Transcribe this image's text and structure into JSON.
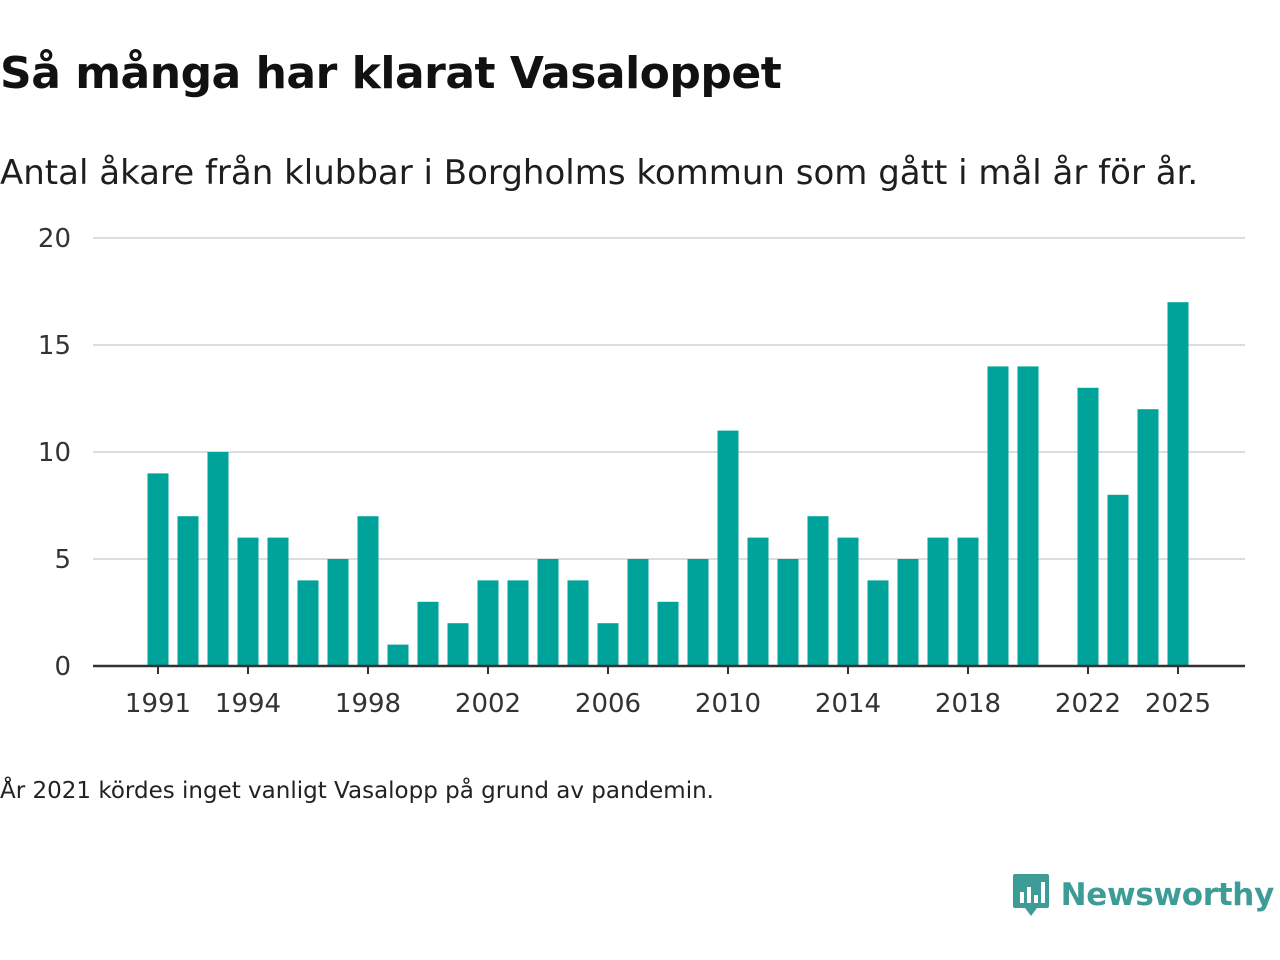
{
  "header": {
    "title": "Så många har klarat Vasaloppet",
    "subtitle": "Antal åkare från klubbar i Borgholms kommun som gått i mål år för år."
  },
  "footer": {
    "note": "År 2021 kördes inget vanligt Vasalopp på grund av pandemin.",
    "brand": "Newsworthy"
  },
  "colors": {
    "bar": "#00a39a",
    "grid": "#dddddd",
    "axis": "#333333",
    "brand": "#3e9c97"
  },
  "chart_data": {
    "type": "bar",
    "title": "Så många har klarat Vasaloppet",
    "xlabel": "",
    "ylabel": "",
    "ylim": [
      0,
      20
    ],
    "yticks": [
      0,
      5,
      10,
      15,
      20
    ],
    "xlim": [
      1990,
      2026
    ],
    "xticks": [
      1991,
      1994,
      1998,
      2002,
      2006,
      2010,
      2014,
      2018,
      2022,
      2025
    ],
    "grid": true,
    "legend": "none",
    "series": [
      {
        "name": "Antal åkare",
        "x": [
          1991,
          1992,
          1993,
          1994,
          1995,
          1996,
          1997,
          1998,
          1999,
          2000,
          2001,
          2002,
          2003,
          2004,
          2005,
          2006,
          2007,
          2008,
          2009,
          2010,
          2011,
          2012,
          2013,
          2014,
          2015,
          2016,
          2017,
          2018,
          2019,
          2020,
          2022,
          2023,
          2024,
          2025
        ],
        "values": [
          9,
          7,
          10,
          6,
          6,
          4,
          5,
          7,
          1,
          3,
          2,
          4,
          4,
          5,
          4,
          2,
          5,
          3,
          5,
          11,
          6,
          5,
          7,
          6,
          4,
          5,
          6,
          6,
          14,
          14,
          13,
          8,
          12,
          17
        ]
      }
    ]
  }
}
